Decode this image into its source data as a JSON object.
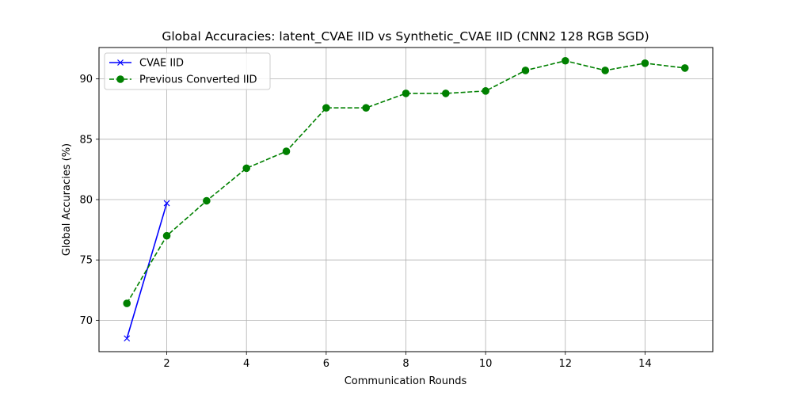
{
  "chart_data": {
    "type": "line",
    "title": "Global Accuracies: latent_CVAE IID vs Synthetic_CVAE IID (CNN2 128 RGB SGD)",
    "xlabel": "Communication Rounds",
    "ylabel": "Global Accuracies (%)",
    "xlim": [
      0.3,
      15.7
    ],
    "ylim": [
      67.4,
      92.6
    ],
    "xticks": [
      2,
      4,
      6,
      8,
      10,
      12,
      14
    ],
    "yticks": [
      70,
      75,
      80,
      85,
      90
    ],
    "grid": true,
    "legend_position": "top-left",
    "series": [
      {
        "name": "CVAE IID",
        "color": "#0000ff",
        "linestyle": "solid",
        "marker": "x",
        "x": [
          1,
          2
        ],
        "y": [
          68.5,
          79.7
        ]
      },
      {
        "name": "Previous Converted IID",
        "color": "#008000",
        "linestyle": "dashed",
        "marker": "circle",
        "x": [
          1,
          2,
          3,
          4,
          5,
          6,
          7,
          8,
          9,
          10,
          11,
          12,
          13,
          14,
          15
        ],
        "y": [
          71.4,
          77.0,
          79.9,
          82.6,
          84.0,
          87.6,
          87.6,
          88.8,
          88.8,
          89.0,
          90.7,
          91.5,
          90.7,
          91.3,
          90.9
        ]
      }
    ]
  }
}
